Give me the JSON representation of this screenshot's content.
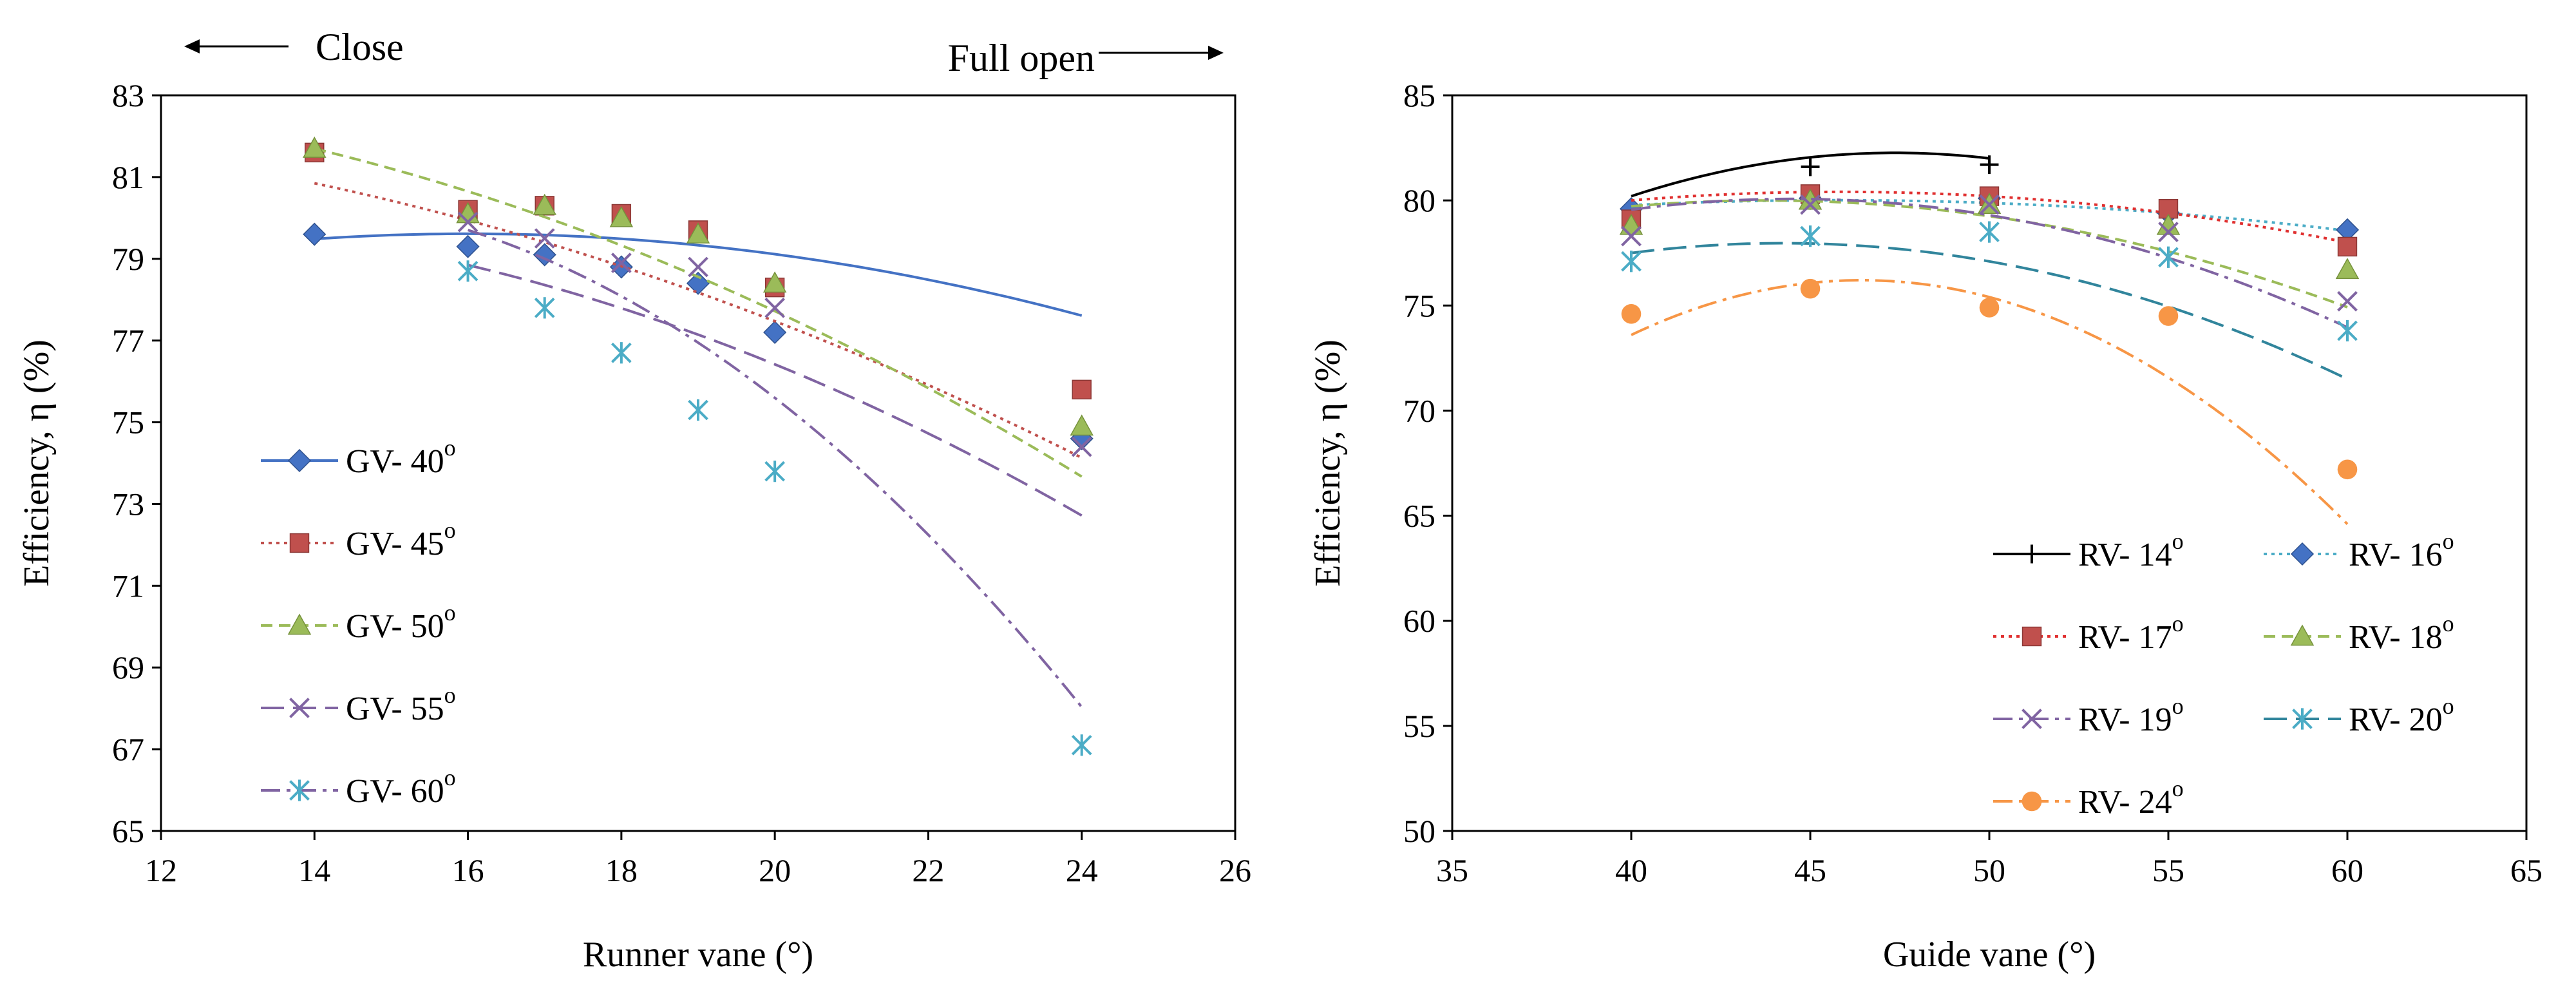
{
  "chart_data": [
    {
      "type": "scatter",
      "title": "",
      "xlabel": "Runner vane (°)",
      "ylabel": "Efficiency, η (%)",
      "xlim": [
        12,
        26
      ],
      "ylim": [
        65,
        83
      ],
      "xticks": [
        12,
        14,
        16,
        18,
        20,
        22,
        24,
        26
      ],
      "yticks": [
        65,
        67,
        69,
        71,
        73,
        75,
        77,
        79,
        81,
        83
      ],
      "annotations": {
        "left": "Close",
        "right": "Full open"
      },
      "legend_position": "lower-left",
      "series": [
        {
          "name": "GV- 40",
          "degree": "o",
          "color": "#4472c4",
          "marker": "diamond",
          "line": "solid",
          "x": [
            14,
            16,
            17,
            18,
            19,
            20,
            24
          ],
          "y": [
            79.6,
            79.3,
            79.1,
            78.8,
            78.4,
            77.2,
            74.6
          ],
          "fit": [
            -0.0314,
            1.0057,
            71.56
          ]
        },
        {
          "name": "GV- 45",
          "degree": "o",
          "color": "#c0504d",
          "marker": "square",
          "line": "dotted",
          "x": [
            14,
            16,
            17,
            18,
            19,
            20,
            24
          ],
          "y": [
            81.6,
            80.2,
            80.3,
            80.1,
            79.7,
            78.3,
            75.8
          ],
          "fit": [
            -0.0273,
            0.3657,
            81.08
          ]
        },
        {
          "name": "GV- 50",
          "degree": "o",
          "color": "#9bbb59",
          "marker": "triangle",
          "line": "dashed",
          "x": [
            14,
            16,
            17,
            18,
            19,
            20,
            24
          ],
          "y": [
            81.7,
            80.1,
            80.3,
            80.0,
            79.6,
            78.4,
            74.9
          ],
          "fit": [
            -0.0351,
            0.5316,
            81.13
          ]
        },
        {
          "name": "GV- 55",
          "degree": "o",
          "color": "#8064a2",
          "marker": "x",
          "line": "longdash",
          "x": [
            16,
            17,
            18,
            19,
            20,
            24
          ],
          "y": [
            79.9,
            79.5,
            78.9,
            78.8,
            77.8,
            74.4
          ],
          "fit": [
            -0.0397,
            0.8219,
            75.86
          ]
        },
        {
          "name": "GV- 60",
          "degree": "o",
          "color": "#4bacc6",
          "marker": "asterisk",
          "line": "dashdot",
          "fit_color": "#8064a2",
          "x": [
            16,
            17,
            18,
            19,
            20,
            24
          ],
          "y": [
            78.7,
            77.8,
            76.7,
            75.3,
            73.8,
            67.1
          ],
          "fit": [
            -0.1081,
            2.8649,
            61.54
          ]
        }
      ]
    },
    {
      "type": "scatter",
      "title": "",
      "xlabel": "Guide vane (°)",
      "ylabel": "Efficiency, η (%)",
      "xlim": [
        35,
        65
      ],
      "ylim": [
        50,
        85
      ],
      "xticks": [
        35,
        40,
        45,
        50,
        55,
        60,
        65
      ],
      "yticks": [
        50,
        55,
        60,
        65,
        70,
        75,
        80,
        85
      ],
      "legend_position": "lower-right",
      "series": [
        {
          "name": "RV- 14",
          "degree": "o",
          "color": "#000000",
          "marker": "plus",
          "line": "solid",
          "fit_color": "#000000",
          "fit_range": [
            40,
            50
          ],
          "x": [
            40,
            45,
            50
          ],
          "y": [
            79.6,
            81.6,
            81.7
          ],
          "fit": [
            -0.038,
            3.6,
            -3.0
          ]
        },
        {
          "name": "RV- 16",
          "degree": "o",
          "color": "#4472c4",
          "marker": "diamond",
          "line": "dotted",
          "fit_color": "#4bacc6",
          "x": [
            40,
            45,
            50,
            55,
            60
          ],
          "y": [
            79.6,
            80.1,
            80.1,
            79.4,
            78.6
          ],
          "fit": [
            -0.00714,
            0.653,
            65.08
          ]
        },
        {
          "name": "RV- 17",
          "degree": "o",
          "color": "#c0504d",
          "marker": "square",
          "line": "dotted",
          "fit_color": "#e03030",
          "x": [
            40,
            45,
            50,
            55,
            60
          ],
          "y": [
            79.1,
            80.3,
            80.2,
            79.6,
            77.8
          ],
          "fit": [
            -0.012,
            1.1,
            55.2
          ]
        },
        {
          "name": "RV- 18",
          "degree": "o",
          "color": "#9bbb59",
          "marker": "triangle",
          "line": "dashed",
          "x": [
            40,
            45,
            50,
            55,
            60
          ],
          "y": [
            78.8,
            80.0,
            79.8,
            78.8,
            76.7
          ],
          "fit": [
            -0.0193,
            1.69,
            43.0
          ]
        },
        {
          "name": "RV- 19",
          "degree": "o",
          "color": "#8064a2",
          "marker": "x",
          "line": "dashdot",
          "x": [
            40,
            45,
            50,
            55,
            60
          ],
          "y": [
            78.3,
            79.8,
            79.8,
            78.5,
            75.2
          ],
          "fit": [
            -0.0254,
            2.26,
            29.8
          ]
        },
        {
          "name": "RV- 20",
          "degree": "o",
          "color": "#4bacc6",
          "marker": "asterisk",
          "line": "longdash",
          "fit_color": "#31859c",
          "x": [
            40,
            45,
            50,
            55,
            60
          ],
          "y": [
            77.1,
            78.3,
            78.5,
            77.3,
            73.8
          ],
          "fit": [
            -0.026,
            2.3,
            27.1
          ]
        },
        {
          "name": "RV- 24",
          "degree": "o",
          "color": "#f79646",
          "marker": "circle",
          "line": "dashdot",
          "fit_color": "#f79646",
          "x": [
            40,
            45,
            50,
            55,
            60
          ],
          "y": [
            74.6,
            75.8,
            74.9,
            74.5,
            67.2
          ],
          "fit": [
            -0.063,
            5.85,
            -59.6
          ]
        }
      ]
    }
  ]
}
